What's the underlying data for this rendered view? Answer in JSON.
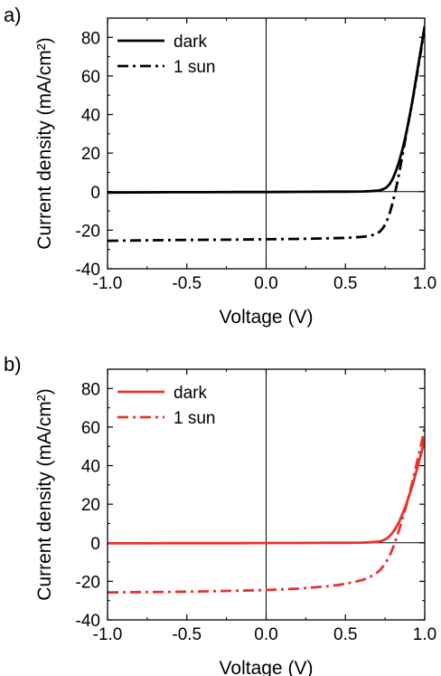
{
  "chart_data": [
    {
      "panel_label": "a)",
      "type": "line",
      "xlabel": "Voltage (V)",
      "ylabel": "Current density (mA/cm²)",
      "xlim": [
        -1.0,
        1.0
      ],
      "ylim": [
        -40,
        90
      ],
      "xticks": [
        "-1.0",
        "-0.5",
        "0.0",
        "0.5",
        "1.0"
      ],
      "yticks": [
        "-40",
        "-20",
        "0",
        "20",
        "40",
        "60",
        "80"
      ],
      "legend_position": "top-left",
      "color": "#000000",
      "series": [
        {
          "name": "dark",
          "style": "solid",
          "x": [
            -1.0,
            -0.8,
            -0.6,
            -0.4,
            -0.2,
            0.0,
            0.2,
            0.4,
            0.5,
            0.6,
            0.65,
            0.7,
            0.72,
            0.74,
            0.76,
            0.78,
            0.8,
            0.82,
            0.84,
            0.86,
            0.88,
            0.9,
            0.92,
            0.94,
            0.96,
            0.98,
            1.0
          ],
          "y": [
            -0.5,
            -0.4,
            -0.3,
            -0.3,
            -0.2,
            -0.2,
            -0.1,
            0,
            0,
            0.1,
            0.2,
            0.5,
            0.8,
            1.3,
            2.3,
            4,
            7,
            11,
            16,
            22,
            29,
            37,
            46,
            56,
            66,
            76,
            86
          ]
        },
        {
          "name": "1 sun",
          "style": "dashdot",
          "x": [
            -1.0,
            -0.8,
            -0.6,
            -0.4,
            -0.2,
            0.0,
            0.2,
            0.4,
            0.5,
            0.6,
            0.65,
            0.7,
            0.72,
            0.74,
            0.76,
            0.78,
            0.8,
            0.82,
            0.84,
            0.86,
            0.88,
            0.9,
            0.92,
            0.94,
            0.96,
            0.98,
            1.0
          ],
          "y": [
            -25.5,
            -25.3,
            -25.1,
            -25.0,
            -24.9,
            -24.7,
            -24.5,
            -24.2,
            -24.0,
            -23.5,
            -23.0,
            -21.8,
            -20.5,
            -18.5,
            -15.5,
            -11,
            -5,
            2,
            10,
            19,
            28,
            37,
            46,
            55,
            65,
            75,
            85
          ]
        }
      ]
    },
    {
      "panel_label": "b)",
      "type": "line",
      "xlabel": "Voltage (V)",
      "ylabel": "Current density (mA/cm²)",
      "xlim": [
        -1.0,
        1.0
      ],
      "ylim": [
        -40,
        90
      ],
      "xticks": [
        "-1.0",
        "-0.5",
        "0.0",
        "0.5",
        "1.0"
      ],
      "yticks": [
        "-40",
        "-20",
        "0",
        "20",
        "40",
        "60",
        "80"
      ],
      "legend_position": "top-left",
      "color": "#e8332a",
      "series": [
        {
          "name": "dark",
          "style": "solid",
          "x": [
            -1.0,
            -0.8,
            -0.6,
            -0.4,
            -0.2,
            0.0,
            0.2,
            0.4,
            0.5,
            0.6,
            0.65,
            0.7,
            0.72,
            0.74,
            0.76,
            0.78,
            0.8,
            0.82,
            0.84,
            0.86,
            0.88,
            0.9,
            0.92,
            0.94,
            0.96,
            0.98,
            1.0
          ],
          "y": [
            -0.3,
            -0.3,
            -0.2,
            -0.2,
            -0.2,
            -0.1,
            -0.1,
            0,
            0,
            0.1,
            0.2,
            0.5,
            0.8,
            1.3,
            2.2,
            3.5,
            5.5,
            8,
            11,
            15,
            19,
            24,
            29,
            35,
            41,
            47,
            54
          ]
        },
        {
          "name": "1 sun",
          "style": "dashdot",
          "x": [
            -1.0,
            -0.8,
            -0.6,
            -0.4,
            -0.2,
            0.0,
            0.2,
            0.4,
            0.5,
            0.6,
            0.65,
            0.7,
            0.72,
            0.74,
            0.76,
            0.78,
            0.8,
            0.82,
            0.84,
            0.86,
            0.88,
            0.9,
            0.92,
            0.94,
            0.96,
            0.98,
            1.0
          ],
          "y": [
            -25.8,
            -25.6,
            -25.5,
            -25.2,
            -24.9,
            -24.5,
            -23.8,
            -22.5,
            -21.3,
            -19.5,
            -18.0,
            -15.5,
            -14.0,
            -12.0,
            -9.5,
            -6.5,
            -2.5,
            2,
            7,
            12.5,
            18,
            24,
            31,
            38,
            45,
            52,
            60
          ]
        }
      ]
    }
  ]
}
